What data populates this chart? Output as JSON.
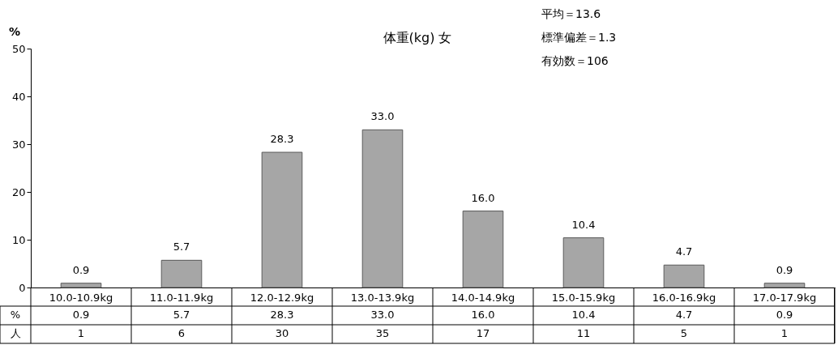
{
  "chart_data": {
    "type": "bar",
    "title": "体重(kg) 女",
    "ylabel": "%",
    "categories": [
      "10.0-10.9kg",
      "11.0-11.9kg",
      "12.0-12.9kg",
      "13.0-13.9kg",
      "14.0-14.9kg",
      "15.0-15.9kg",
      "16.0-16.9kg",
      "17.0-17.9kg"
    ],
    "values": [
      0.9,
      5.7,
      28.3,
      33.0,
      16.0,
      10.4,
      4.7,
      0.9
    ],
    "color": "#a6a6a6",
    "ylim": [
      0,
      50
    ],
    "yticks": [
      0,
      10,
      20,
      30,
      40,
      50
    ],
    "grid": false,
    "value_labels": [
      "0.9",
      "5.7",
      "28.3",
      "33.0",
      "16.0",
      "10.4",
      "4.7",
      "0.9"
    ],
    "annotations": [
      "平均＝13.6",
      "標準偏差＝1.3",
      "有効数＝106",
      "人",
      "0.9",
      "5.7",
      "28.3",
      "33.0",
      "16.0",
      "10.4",
      "4.7",
      "0.9",
      "1",
      "6",
      "30",
      "35",
      "17",
      "11",
      "5",
      "1"
    ]
  }
}
